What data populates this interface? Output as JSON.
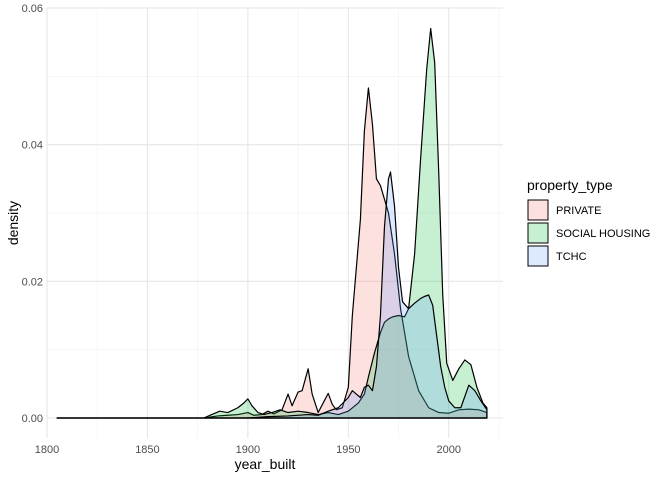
{
  "chart_data": {
    "type": "area",
    "xlabel": "year_built",
    "ylabel": "density",
    "xlim": [
      1800,
      2027
    ],
    "ylim": [
      0,
      0.06
    ],
    "x_ticks": [
      "1800",
      "1850",
      "1900",
      "1950",
      "2000"
    ],
    "y_ticks": [
      "0.00",
      "0.02",
      "0.04",
      "0.06"
    ],
    "x_tick_values": [
      1800,
      1850,
      1900,
      1950,
      2000
    ],
    "y_tick_values": [
      0,
      0.02,
      0.04,
      0.06
    ],
    "grid": true,
    "legend": {
      "title": "property_type",
      "position": "right"
    },
    "series": [
      {
        "name": "PRIVATE",
        "fill": "#F8766D",
        "points": [
          [
            1805,
            0
          ],
          [
            1830,
            0
          ],
          [
            1860,
            0
          ],
          [
            1878,
            0
          ],
          [
            1885,
            0.0003
          ],
          [
            1890,
            0.0004
          ],
          [
            1895,
            0.0005
          ],
          [
            1900,
            0.0008
          ],
          [
            1903,
            0.0004
          ],
          [
            1907,
            0.0005
          ],
          [
            1910,
            0.001
          ],
          [
            1913,
            0.0006
          ],
          [
            1917,
            0.0012
          ],
          [
            1920,
            0.0035
          ],
          [
            1922,
            0.0018
          ],
          [
            1925,
            0.0038
          ],
          [
            1927,
            0.004
          ],
          [
            1930,
            0.0072
          ],
          [
            1932,
            0.0035
          ],
          [
            1935,
            0.0008
          ],
          [
            1938,
            0.0025
          ],
          [
            1940,
            0.0036
          ],
          [
            1942,
            0.002
          ],
          [
            1944,
            0.0012
          ],
          [
            1947,
            0.0015
          ],
          [
            1950,
            0.0045
          ],
          [
            1952,
            0.015
          ],
          [
            1954,
            0.022
          ],
          [
            1956,
            0.029
          ],
          [
            1958,
            0.042
          ],
          [
            1960,
            0.0483
          ],
          [
            1962,
            0.043
          ],
          [
            1964,
            0.035
          ],
          [
            1966,
            0.034
          ],
          [
            1968,
            0.032
          ],
          [
            1970,
            0.03
          ],
          [
            1973,
            0.024
          ],
          [
            1976,
            0.016
          ],
          [
            1980,
            0.009
          ],
          [
            1985,
            0.004
          ],
          [
            1990,
            0.0015
          ],
          [
            1995,
            0.0008
          ],
          [
            2000,
            0.0007
          ],
          [
            2005,
            0.0012
          ],
          [
            2010,
            0.0013
          ],
          [
            2015,
            0.0012
          ],
          [
            2019,
            0.0008
          ]
        ]
      },
      {
        "name": "SOCIAL HOUSING",
        "fill": "#00BA38",
        "points": [
          [
            1805,
            0
          ],
          [
            1860,
            0
          ],
          [
            1878,
            0
          ],
          [
            1882,
            0.0005
          ],
          [
            1886,
            0.001
          ],
          [
            1890,
            0.0008
          ],
          [
            1895,
            0.0015
          ],
          [
            1898,
            0.0022
          ],
          [
            1900,
            0.0028
          ],
          [
            1902,
            0.0018
          ],
          [
            1905,
            0.0008
          ],
          [
            1908,
            0.0005
          ],
          [
            1912,
            0.0008
          ],
          [
            1916,
            0.0012
          ],
          [
            1920,
            0.0008
          ],
          [
            1925,
            0.001
          ],
          [
            1930,
            0.0008
          ],
          [
            1935,
            0.0005
          ],
          [
            1940,
            0.0008
          ],
          [
            1945,
            0.0005
          ],
          [
            1950,
            0.001
          ],
          [
            1955,
            0.0022
          ],
          [
            1958,
            0.0035
          ],
          [
            1960,
            0.006
          ],
          [
            1963,
            0.0095
          ],
          [
            1966,
            0.0125
          ],
          [
            1968,
            0.014
          ],
          [
            1970,
            0.0145
          ],
          [
            1972,
            0.0148
          ],
          [
            1975,
            0.015
          ],
          [
            1978,
            0.0148
          ],
          [
            1980,
            0.016
          ],
          [
            1983,
            0.024
          ],
          [
            1986,
            0.038
          ],
          [
            1989,
            0.051
          ],
          [
            1991,
            0.057
          ],
          [
            1993,
            0.052
          ],
          [
            1995,
            0.036
          ],
          [
            1997,
            0.018
          ],
          [
            1999,
            0.008
          ],
          [
            2002,
            0.0055
          ],
          [
            2005,
            0.0072
          ],
          [
            2008,
            0.0085
          ],
          [
            2011,
            0.0078
          ],
          [
            2014,
            0.0045
          ],
          [
            2017,
            0.0022
          ],
          [
            2019,
            0.0015
          ]
        ]
      },
      {
        "name": "TCHC",
        "fill": "#619CFF",
        "points": [
          [
            1805,
            0
          ],
          [
            1900,
            0
          ],
          [
            1910,
            0.0002
          ],
          [
            1920,
            0.0003
          ],
          [
            1930,
            0.0005
          ],
          [
            1935,
            0.0004
          ],
          [
            1940,
            0.001
          ],
          [
            1945,
            0.0015
          ],
          [
            1950,
            0.003
          ],
          [
            1952,
            0.004
          ],
          [
            1954,
            0.0035
          ],
          [
            1956,
            0.003
          ],
          [
            1958,
            0.0045
          ],
          [
            1960,
            0.0048
          ],
          [
            1962,
            0.004
          ],
          [
            1964,
            0.0075
          ],
          [
            1966,
            0.015
          ],
          [
            1968,
            0.028
          ],
          [
            1970,
            0.035
          ],
          [
            1971,
            0.036
          ],
          [
            1973,
            0.031
          ],
          [
            1975,
            0.022
          ],
          [
            1977,
            0.017
          ],
          [
            1980,
            0.016
          ],
          [
            1983,
            0.0168
          ],
          [
            1986,
            0.0175
          ],
          [
            1988,
            0.0178
          ],
          [
            1990,
            0.018
          ],
          [
            1992,
            0.0165
          ],
          [
            1994,
            0.012
          ],
          [
            1996,
            0.0075
          ],
          [
            1998,
            0.0045
          ],
          [
            2000,
            0.0025
          ],
          [
            2003,
            0.0015
          ],
          [
            2006,
            0.0015
          ],
          [
            2010,
            0.0048
          ],
          [
            2013,
            0.004
          ],
          [
            2016,
            0.0025
          ],
          [
            2019,
            0.0012
          ]
        ]
      }
    ]
  }
}
